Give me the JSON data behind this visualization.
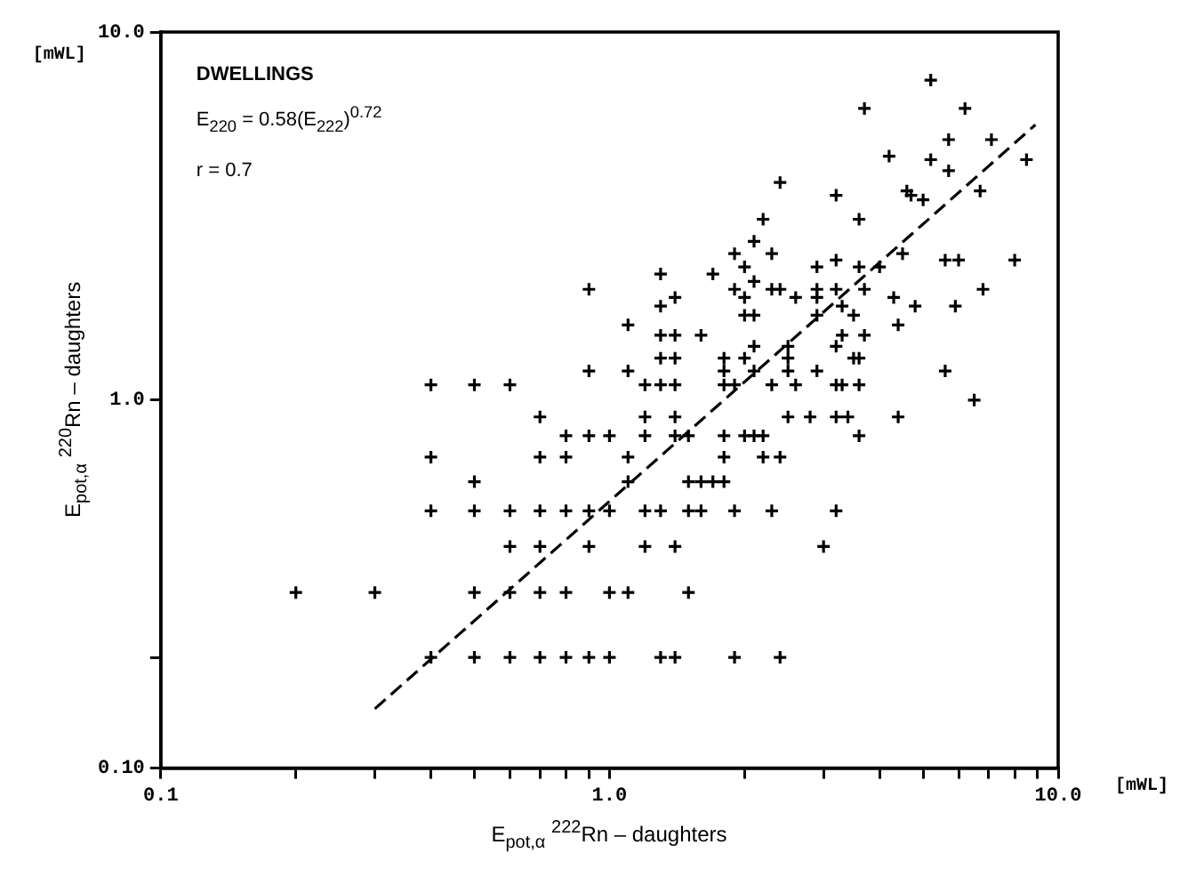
{
  "chart_data": {
    "type": "scatter",
    "xlabel": "E$_{pot,α}$  $^{222}$Rn – daughters",
    "ylabel": "E$_{pot,α}$  $^{220}$Rn – daughters",
    "annotations": [
      "DWELLINGS",
      "E$_{220}$ = 0.58(E$_{222}$)$^{0.72}$",
      "r = 0.7",
      "[mWL]",
      "[mWL]"
    ],
    "log": "xy",
    "grid": false,
    "legend": false,
    "xlim": [
      0.1,
      10
    ],
    "ylim": [
      0.1,
      10
    ],
    "xticks": [
      {
        "value": 0.1,
        "label": "0.1"
      },
      {
        "value": 0.2,
        "label": null
      },
      {
        "value": 0.3,
        "label": null
      },
      {
        "value": 0.4,
        "label": null
      },
      {
        "value": 0.5,
        "label": null
      },
      {
        "value": 0.6,
        "label": null
      },
      {
        "value": 0.7,
        "label": null
      },
      {
        "value": 0.8,
        "label": null
      },
      {
        "value": 0.9,
        "label": null
      },
      {
        "value": 1,
        "label": "1.0"
      },
      {
        "value": 2,
        "label": null
      },
      {
        "value": 3,
        "label": null
      },
      {
        "value": 4,
        "label": null
      },
      {
        "value": 5,
        "label": null
      },
      {
        "value": 6,
        "label": null
      },
      {
        "value": 7,
        "label": null
      },
      {
        "value": 8,
        "label": null
      },
      {
        "value": 9,
        "label": null
      },
      {
        "value": 10,
        "label": "10.0"
      }
    ],
    "yticks": [
      {
        "value": 0.1,
        "label": "0.10"
      },
      {
        "value": 0.2,
        "label": null
      },
      {
        "value": 1,
        "label": "1.0"
      },
      {
        "value": 10,
        "label": "10.0"
      }
    ],
    "series": [
      {
        "color": "#000000",
        "marker": "cross",
        "x": [
          0.4,
          0.5,
          0.6,
          0.7,
          0.8,
          0.9,
          1.0,
          1.3,
          1.4,
          1.9,
          2.4,
          0.2,
          0.3,
          0.5,
          0.6,
          0.7,
          0.8,
          1.0,
          1.1,
          1.5,
          0.6,
          0.7,
          0.9,
          1.2,
          1.4,
          3.0,
          0.4,
          0.5,
          0.6,
          0.7,
          0.8,
          0.9,
          1.0,
          1.2,
          1.3,
          1.5,
          1.6,
          1.9,
          2.3,
          3.2,
          0.5,
          1.1,
          1.5,
          1.6,
          1.7,
          1.8,
          0.4,
          0.7,
          0.8,
          1.1,
          1.8,
          2.2,
          2.4,
          0.8,
          0.9,
          1.0,
          1.2,
          1.4,
          1.5,
          1.8,
          2.0,
          2.1,
          2.2,
          3.6,
          0.7,
          1.2,
          1.4,
          2.5,
          2.8,
          3.2,
          3.4,
          4.4,
          6.5,
          0.4,
          0.5,
          0.6,
          1.2,
          1.3,
          1.4,
          1.8,
          1.9,
          2.3,
          2.6,
          3.2,
          3.3,
          3.6,
          0.9,
          1.1,
          1.8,
          2.1,
          2.5,
          2.9,
          5.6,
          1.3,
          1.4,
          1.8,
          2.0,
          2.5,
          3.5,
          3.6,
          2.1,
          2.5,
          3.2,
          1.3,
          1.4,
          1.6,
          3.3,
          3.7,
          1.1,
          4.4,
          2.0,
          2.1,
          2.9,
          3.5,
          1.3,
          3.3,
          4.8,
          5.9,
          1.4,
          2.0,
          2.6,
          2.9,
          4.3,
          0.9,
          1.9,
          2.3,
          2.4,
          2.9,
          3.2,
          3.7,
          6.8,
          2.1,
          1.3,
          1.7,
          2.0,
          2.9,
          3.6,
          4.0,
          3.2,
          5.6,
          6.0,
          8.0,
          1.9,
          2.3,
          4.5,
          2.1,
          2.2,
          3.6,
          5.0,
          3.2,
          4.7,
          4.6,
          6.7,
          2.4,
          5.7,
          5.2,
          8.5,
          4.2,
          5.7,
          7.1,
          3.7,
          6.2,
          5.2
        ],
        "values": [
          0.2,
          0.2,
          0.2,
          0.2,
          0.2,
          0.2,
          0.2,
          0.2,
          0.2,
          0.2,
          0.2,
          0.3,
          0.3,
          0.3,
          0.3,
          0.3,
          0.3,
          0.3,
          0.3,
          0.3,
          0.4,
          0.4,
          0.4,
          0.4,
          0.4,
          0.4,
          0.5,
          0.5,
          0.5,
          0.5,
          0.5,
          0.5,
          0.5,
          0.5,
          0.5,
          0.5,
          0.5,
          0.5,
          0.5,
          0.5,
          0.6,
          0.6,
          0.6,
          0.6,
          0.6,
          0.6,
          0.7,
          0.7,
          0.7,
          0.7,
          0.7,
          0.7,
          0.7,
          0.8,
          0.8,
          0.8,
          0.8,
          0.8,
          0.8,
          0.8,
          0.8,
          0.8,
          0.8,
          0.8,
          0.9,
          0.9,
          0.9,
          0.9,
          0.9,
          0.9,
          0.9,
          0.9,
          1.0,
          1.1,
          1.1,
          1.1,
          1.1,
          1.1,
          1.1,
          1.1,
          1.1,
          1.1,
          1.1,
          1.1,
          1.1,
          1.1,
          1.2,
          1.2,
          1.2,
          1.2,
          1.2,
          1.2,
          1.2,
          1.3,
          1.3,
          1.3,
          1.3,
          1.3,
          1.3,
          1.3,
          1.4,
          1.4,
          1.4,
          1.5,
          1.5,
          1.5,
          1.5,
          1.5,
          1.6,
          1.6,
          1.7,
          1.7,
          1.7,
          1.7,
          1.8,
          1.8,
          1.8,
          1.8,
          1.9,
          1.9,
          1.9,
          1.9,
          1.9,
          2.0,
          2.0,
          2.0,
          2.0,
          2.0,
          2.0,
          2.0,
          2.0,
          2.1,
          2.2,
          2.2,
          2.3,
          2.3,
          2.3,
          2.3,
          2.4,
          2.4,
          2.4,
          2.4,
          2.5,
          2.5,
          2.5,
          2.7,
          3.1,
          3.1,
          3.5,
          3.6,
          3.6,
          3.7,
          3.7,
          3.9,
          4.2,
          4.5,
          4.5,
          4.6,
          5.1,
          5.1,
          6.2,
          6.2,
          7.4
        ]
      },
      {
        "type": "line",
        "marker": "none",
        "line_style": "dashed",
        "color": "#000000",
        "x": [
          0.3,
          8.9
        ],
        "values": [
          0.145,
          5.6
        ]
      }
    ]
  }
}
